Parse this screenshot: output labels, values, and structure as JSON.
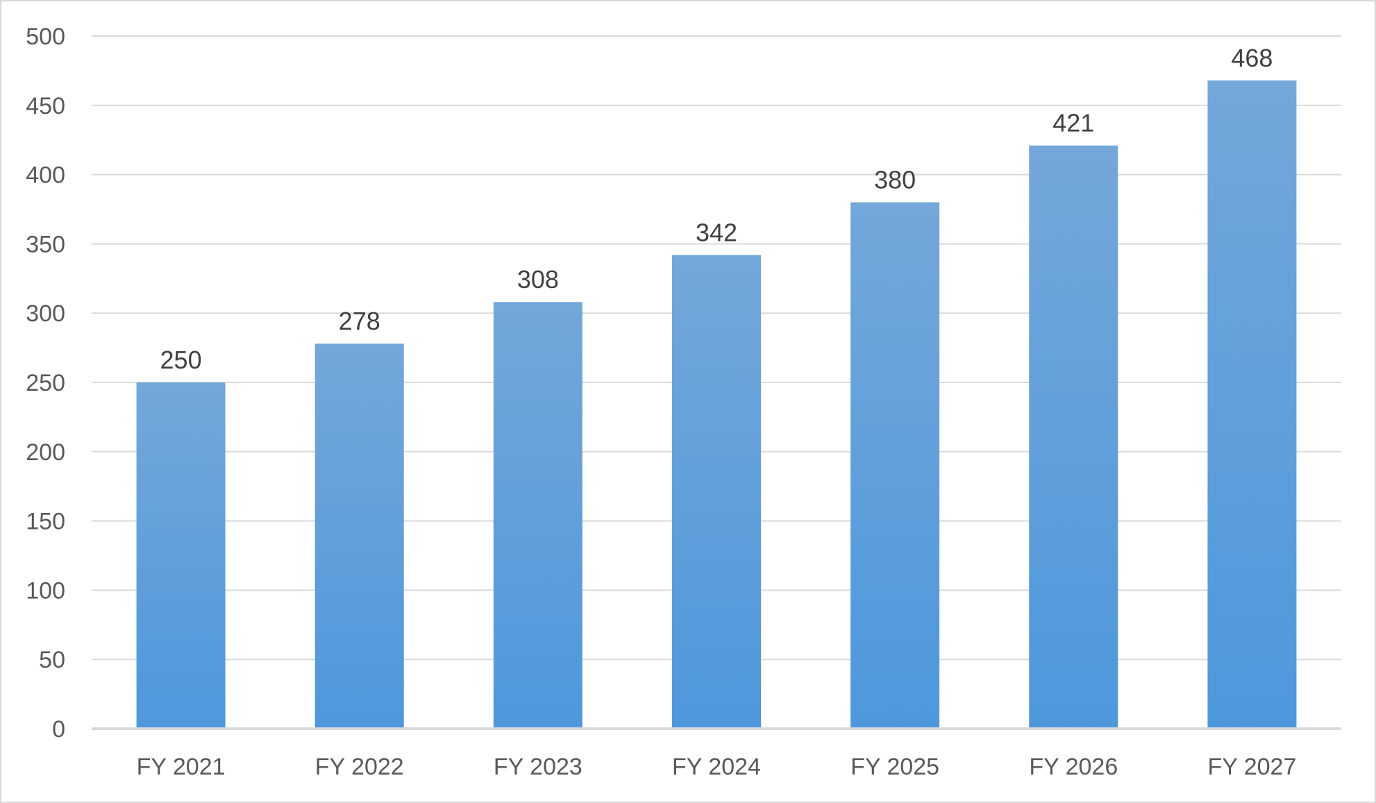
{
  "chart_data": {
    "type": "bar",
    "title": "",
    "xlabel": "",
    "ylabel": "",
    "categories": [
      "FY 2021",
      "FY 2022",
      "FY 2023",
      "FY 2024",
      "FY 2025",
      "FY 2026",
      "FY 2027"
    ],
    "values": [
      250,
      278,
      308,
      342,
      380,
      421,
      468
    ],
    "data_labels": [
      "250",
      "278",
      "308",
      "342",
      "380",
      "421",
      "468"
    ],
    "ylim": [
      0,
      500
    ],
    "yticks": [
      "0",
      "50",
      "100",
      "150",
      "200",
      "250",
      "300",
      "350",
      "400",
      "450",
      "500"
    ],
    "grid": true,
    "legend": "none",
    "colors": {
      "bar_top": "#74a7da",
      "bar_bottom": "#4d98dc",
      "gridline": "#d9d9d9",
      "axis_text": "#595959",
      "data_label_text": "#404040",
      "border": "#d9d9d9"
    }
  }
}
